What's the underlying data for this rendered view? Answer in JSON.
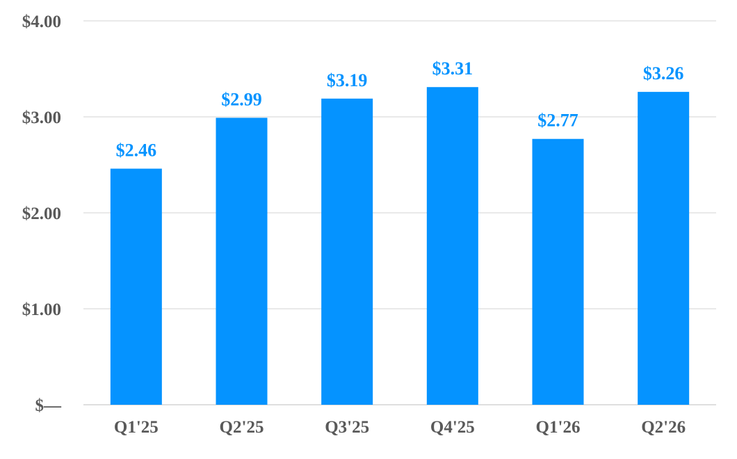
{
  "chart_data": {
    "type": "bar",
    "categories": [
      "Q1'25",
      "Q2'25",
      "Q3'25",
      "Q4'25",
      "Q1'26",
      "Q2'26"
    ],
    "values": [
      2.46,
      2.99,
      3.19,
      3.31,
      2.77,
      3.26
    ],
    "data_labels": [
      "$2.46",
      "$2.99",
      "$3.19",
      "$3.31",
      "$2.77",
      "$3.26"
    ],
    "y_ticks": [
      0,
      1,
      2,
      3,
      4
    ],
    "y_tick_labels": [
      "$—",
      "$1.00",
      "$2.00",
      "$3.00",
      "$4.00"
    ],
    "ylim": [
      0,
      4
    ],
    "grid": true,
    "legend": "none",
    "title": "",
    "xlabel": "",
    "ylabel": "",
    "bar_color": "#0593ff",
    "label_color": "#0593ff",
    "tick_color": "#595959",
    "grid_color": "#e2e2e2"
  }
}
